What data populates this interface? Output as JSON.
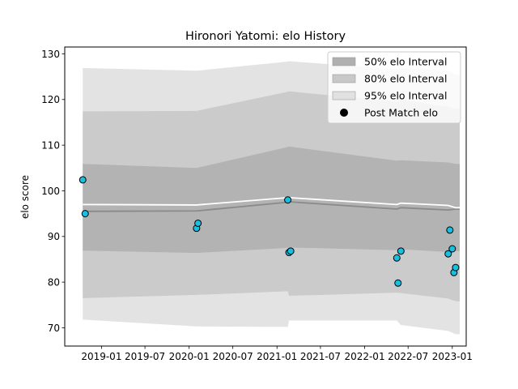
{
  "chart_data": {
    "type": "line",
    "title": "Hironori Yatomi: elo History",
    "xlabel": "",
    "ylabel": "elo score",
    "xlim": [
      "2018-08-01",
      "2023-02-28"
    ],
    "ylim": [
      66,
      131.5
    ],
    "x_ticks": [
      "2019-01",
      "2019-07",
      "2020-01",
      "2020-07",
      "2021-01",
      "2021-07",
      "2022-01",
      "2022-07",
      "2023-01"
    ],
    "y_ticks": [
      70,
      80,
      90,
      100,
      110,
      120,
      130
    ],
    "grid": false,
    "legend_position": "top-right",
    "legend": [
      {
        "label": "50% elo Interval",
        "color": "#b0b0b0"
      },
      {
        "label": "80% elo Interval",
        "color": "#c8c8c8"
      },
      {
        "label": "95% elo Interval",
        "color": "#e1e1e1"
      },
      {
        "label": "Post Match elo",
        "color": "#000000"
      }
    ],
    "colors": {
      "band_50": "#b3b3b3",
      "band_80": "#cbcbcb",
      "band_95": "#e3e3e3",
      "median_line": "#8a8a8a",
      "mean_line": "#ffffff",
      "point_fill": "#17bfe0",
      "point_edge": "#000000"
    },
    "interval_dates": [
      "2018-10-15",
      "2020-02-01",
      "2021-02-15",
      "2021-02-20",
      "2022-05-15",
      "2022-06-01",
      "2022-12-15",
      "2023-01-15",
      "2023-02-01"
    ],
    "band_95_upper": [
      126.9,
      126.3,
      128.3,
      128.4,
      126.6,
      126.9,
      126.3,
      125.4,
      125.4
    ],
    "band_95_lower": [
      71.8,
      70.3,
      70.2,
      71.6,
      71.6,
      70.6,
      69.3,
      68.6,
      68.6
    ],
    "band_80_upper": [
      117.4,
      117.5,
      121.7,
      121.8,
      119.5,
      119.9,
      118.4,
      118.0,
      118.0
    ],
    "band_80_lower": [
      76.5,
      77.2,
      78.0,
      77.0,
      77.7,
      77.6,
      76.4,
      75.8,
      75.8
    ],
    "band_50_upper": [
      105.9,
      105.0,
      109.6,
      109.7,
      106.6,
      106.7,
      106.2,
      105.9,
      105.9
    ],
    "band_50_lower": [
      86.9,
      86.4,
      87.5,
      87.6,
      87.0,
      87.2,
      86.6,
      86.8,
      86.8
    ],
    "median_line": [
      95.5,
      95.6,
      97.5,
      97.6,
      96.0,
      96.3,
      95.8,
      96.0,
      96.0
    ],
    "mean_line": [
      97.0,
      96.9,
      98.5,
      98.5,
      97.0,
      97.3,
      96.8,
      96.3,
      96.3
    ],
    "post_match_elo": [
      {
        "date": "2018-10-15",
        "elo": 102.4
      },
      {
        "date": "2018-10-25",
        "elo": 95.0
      },
      {
        "date": "2020-02-01",
        "elo": 91.8
      },
      {
        "date": "2020-02-07",
        "elo": 92.9
      },
      {
        "date": "2021-02-15",
        "elo": 98.0
      },
      {
        "date": "2021-02-20",
        "elo": 86.5
      },
      {
        "date": "2021-02-27",
        "elo": 86.8
      },
      {
        "date": "2022-05-15",
        "elo": 85.3
      },
      {
        "date": "2022-05-20",
        "elo": 79.8
      },
      {
        "date": "2022-06-01",
        "elo": 86.8
      },
      {
        "date": "2022-12-15",
        "elo": 86.2
      },
      {
        "date": "2022-12-22",
        "elo": 91.4
      },
      {
        "date": "2023-01-01",
        "elo": 87.3
      },
      {
        "date": "2023-01-08",
        "elo": 82.1
      },
      {
        "date": "2023-01-15",
        "elo": 83.2
      }
    ]
  }
}
